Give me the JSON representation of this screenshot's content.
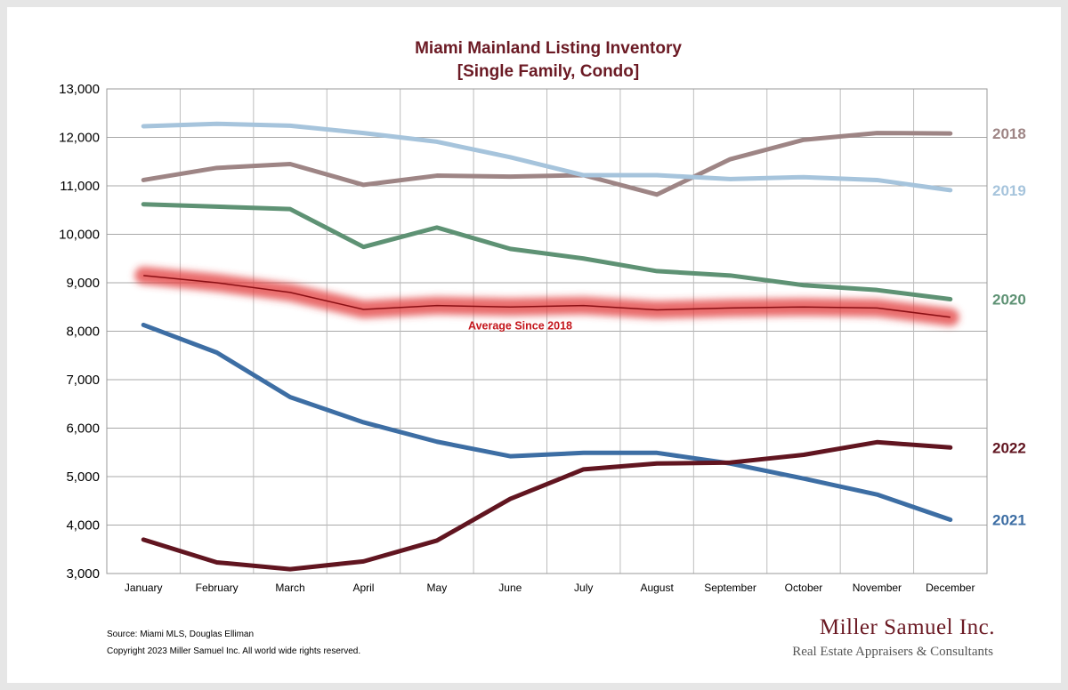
{
  "chart_data": {
    "type": "line",
    "title": "Miami Mainland Listing Inventory",
    "subtitle": "[Single Family, Condo]",
    "categories": [
      "January",
      "February",
      "March",
      "April",
      "May",
      "June",
      "July",
      "August",
      "September",
      "October",
      "November",
      "December"
    ],
    "ylim": [
      3000,
      13000
    ],
    "yticks": [
      "3,000",
      "4,000",
      "5,000",
      "6,000",
      "7,000",
      "8,000",
      "9,000",
      "10,000",
      "11,000",
      "12,000",
      "13,000"
    ],
    "ytick_values": [
      3000,
      4000,
      5000,
      6000,
      7000,
      8000,
      9000,
      10000,
      11000,
      12000,
      13000
    ],
    "grid": true,
    "series": [
      {
        "name": "2018",
        "color": "#9e8585",
        "values": [
          11120,
          11370,
          11450,
          11020,
          11210,
          11190,
          11220,
          10820,
          11550,
          11950,
          12090,
          12080
        ]
      },
      {
        "name": "2019",
        "color": "#a6c4dc",
        "values": [
          12230,
          12280,
          12240,
          12090,
          11910,
          11590,
          11220,
          11220,
          11140,
          11180,
          11120,
          10910
        ]
      },
      {
        "name": "2020",
        "color": "#5e9274",
        "values": [
          10620,
          10570,
          10520,
          9740,
          10140,
          9700,
          9500,
          9240,
          9150,
          8950,
          8850,
          8660
        ]
      },
      {
        "name": "2021",
        "color": "#3d6ea4",
        "values": [
          8130,
          7560,
          6640,
          6120,
          5720,
          5420,
          5490,
          5490,
          5270,
          4960,
          4630,
          4110
        ]
      },
      {
        "name": "2022",
        "color": "#611520",
        "values": [
          3700,
          3230,
          3090,
          3250,
          3680,
          4540,
          5150,
          5270,
          5290,
          5450,
          5710,
          5600
        ]
      }
    ],
    "average": {
      "label": "Average  Since 2018",
      "color": "#c4161c",
      "values": [
        9150,
        9000,
        8800,
        8450,
        8530,
        8500,
        8530,
        8440,
        8480,
        8500,
        8480,
        8290
      ]
    }
  },
  "footer": {
    "source": "Source: Miami MLS, Douglas Elliman",
    "copyright": "Copyright 2023 Miller Samuel Inc.  All world wide rights reserved."
  },
  "logo": {
    "name": "Miller Samuel Inc.",
    "tagline": "Real Estate Appraisers & Consultants"
  }
}
